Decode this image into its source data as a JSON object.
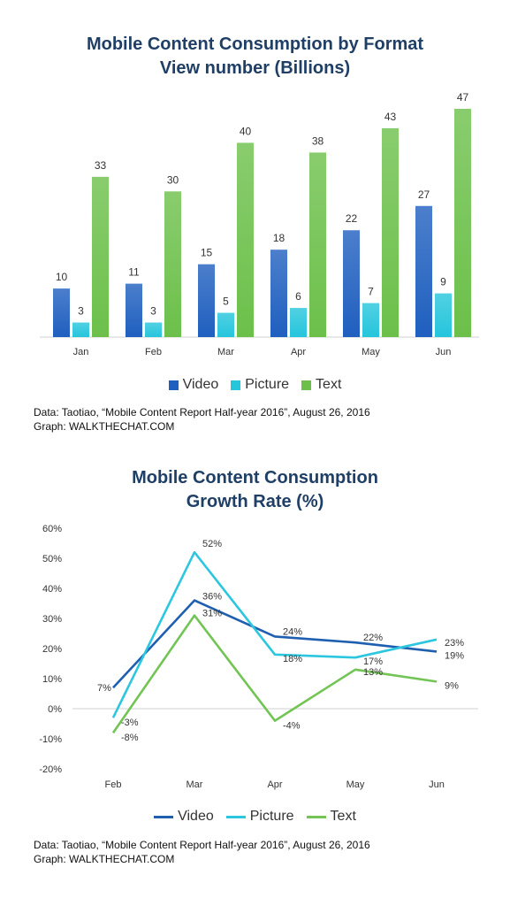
{
  "chart_data": [
    {
      "type": "bar",
      "title": "Mobile Content Consumption by Format",
      "subtitle": "View number (Billions)",
      "categories": [
        "Jan",
        "Feb",
        "Mar",
        "Apr",
        "May",
        "Jun"
      ],
      "series": [
        {
          "name": "Video",
          "color": "#1f5fbf",
          "values": [
            10,
            11,
            15,
            18,
            22,
            27
          ]
        },
        {
          "name": "Picture",
          "color": "#25c5dc",
          "values": [
            3,
            3,
            5,
            6,
            7,
            9
          ]
        },
        {
          "name": "Text",
          "color": "#6cc04a",
          "values": [
            33,
            30,
            40,
            38,
            43,
            47
          ]
        }
      ],
      "ylim": [
        0,
        47
      ],
      "grid": false,
      "legend": "bottom",
      "source": "Data: Taotiao, “Mobile Content Report Half-year 2016”, August 26, 2016",
      "graph_credit": "Graph: WALKTHECHAT.COM"
    },
    {
      "type": "line",
      "title": "Mobile Content Consumption",
      "subtitle": "Growth Rate (%)",
      "categories": [
        "Feb",
        "Mar",
        "Apr",
        "May",
        "Jun"
      ],
      "series": [
        {
          "name": "Video",
          "color": "#1f5fb0",
          "values": [
            7,
            36,
            24,
            22,
            19
          ]
        },
        {
          "name": "Picture",
          "color": "#2cc7df",
          "values": [
            -3,
            52,
            18,
            17,
            23
          ]
        },
        {
          "name": "Text",
          "color": "#72c454",
          "values": [
            -8,
            31,
            -4,
            13,
            9
          ]
        }
      ],
      "yticks": [
        "60%",
        "50%",
        "40%",
        "30%",
        "20%",
        "10%",
        "0%",
        "-10%",
        "-20%"
      ],
      "ylim": [
        -20,
        60
      ],
      "grid": false,
      "legend": "bottom",
      "source": "Data: Taotiao, “Mobile Content Report Half-year 2016”, August 26, 2016",
      "graph_credit": "Graph: WALKTHECHAT.COM"
    }
  ]
}
